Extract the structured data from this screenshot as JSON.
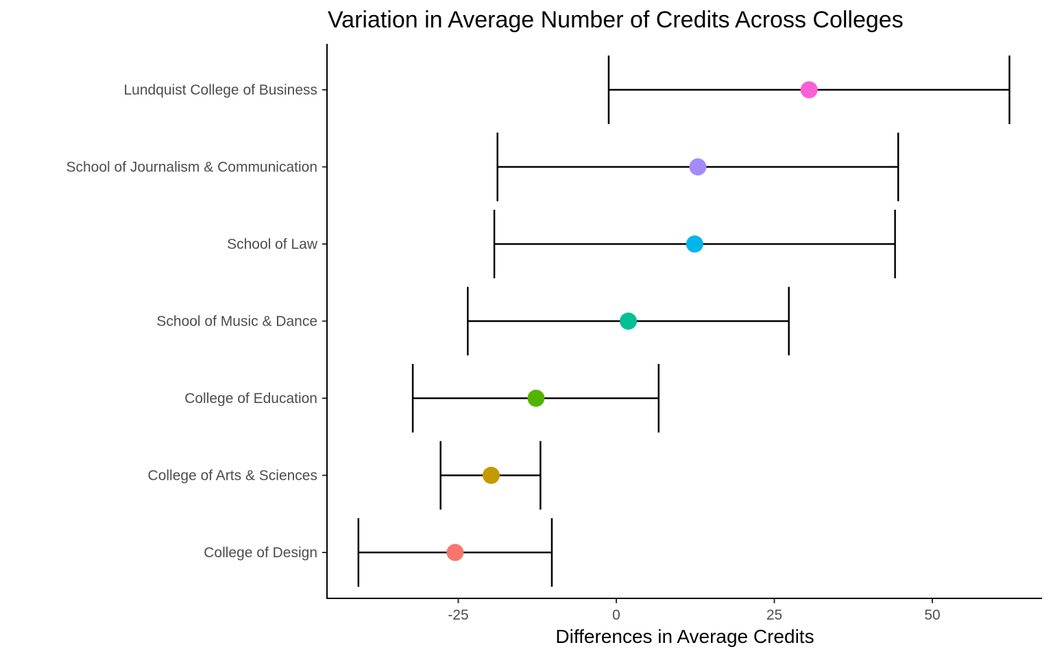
{
  "chart_data": {
    "type": "scatter",
    "title": "Variation in Average Number of Credits Across Colleges",
    "xlabel": "Differences in Average Credits",
    "ylabel": "",
    "xlim": [
      -46,
      67
    ],
    "xticks": [
      -25,
      0,
      25,
      50
    ],
    "xtick_labels": [
      "-25",
      "0",
      "25",
      "50"
    ],
    "grid": false,
    "legend": "none",
    "categories": [
      "College of Design",
      "College of Arts & Sciences",
      "College of Education",
      "School of Music & Dance",
      "School of Law",
      "School of Journalism & Communication",
      "Lundquist College of Business"
    ],
    "series": [
      {
        "values": [
          -25.5,
          -19.8,
          -12.7,
          1.9,
          12.4,
          12.9,
          30.5
        ],
        "lower": [
          -40.8,
          -27.8,
          -32.2,
          -23.5,
          -19.3,
          -18.8,
          -1.2
        ],
        "upper": [
          -10.2,
          -12.0,
          6.7,
          27.3,
          44.1,
          44.6,
          62.2
        ],
        "colors": [
          "#F8766D",
          "#C49A00",
          "#53B400",
          "#00C094",
          "#00B6EB",
          "#A58AFF",
          "#FB61D7"
        ]
      }
    ]
  }
}
